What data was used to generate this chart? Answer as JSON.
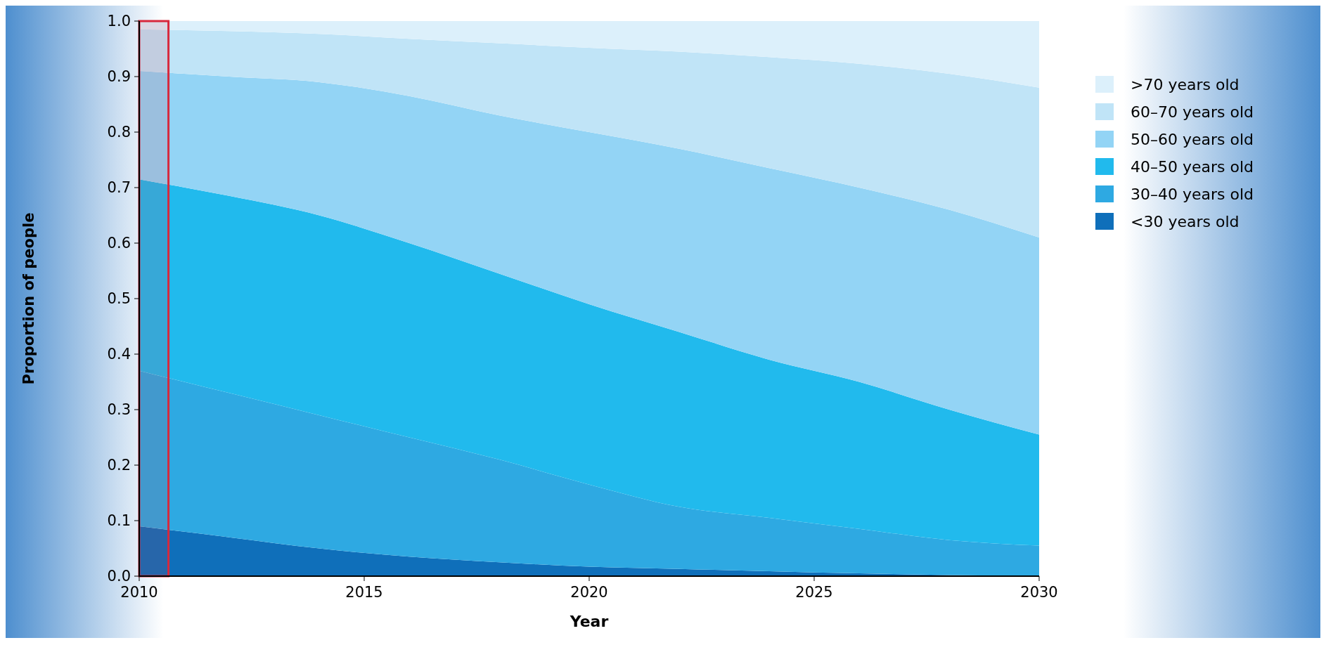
{
  "chart_data": {
    "type": "area",
    "stacked": true,
    "xlabel": "Year",
    "ylabel": "Proportion of people",
    "x": [
      2010,
      2012,
      2014,
      2016,
      2018,
      2020,
      2022,
      2024,
      2026,
      2028,
      2030
    ],
    "xlim": [
      2010,
      2030
    ],
    "xticks": [
      2010,
      2015,
      2020,
      2025,
      2030
    ],
    "ylim": [
      0,
      1
    ],
    "yticks": [
      {
        "value": 0,
        "label": "0.0"
      },
      {
        "value": 0.1,
        "label": "0.1"
      },
      {
        "value": 0.2,
        "label": "0.2"
      },
      {
        "value": 0.3,
        "label": "0.3"
      },
      {
        "value": 0.4,
        "label": "0.4"
      },
      {
        "value": 0.5,
        "label": "0.5"
      },
      {
        "value": 0.6,
        "label": "0.6"
      },
      {
        "value": 0.7,
        "label": "0.7"
      },
      {
        "value": 0.8,
        "label": "0.8"
      },
      {
        "value": 0.9,
        "label": "0.9"
      },
      {
        "value": 1,
        "label": "1.0"
      }
    ],
    "grid": false,
    "legend": "right",
    "bands": [
      {
        "axis": "x",
        "from": 2010,
        "to": 2010.65,
        "color": "#d8283c"
      }
    ],
    "series": [
      {
        "name": "<30 years old",
        "color": "#0f6fba",
        "values": [
          0.09,
          0.07,
          0.05,
          0.035,
          0.025,
          0.017,
          0.013,
          0.009,
          0.005,
          0.002,
          0
        ]
      },
      {
        "name": "30–40 years old",
        "color": "#2ea9e2",
        "values": [
          0.28,
          0.26,
          0.24,
          0.215,
          0.185,
          0.148,
          0.112,
          0.096,
          0.08,
          0.063,
          0.055
        ]
      },
      {
        "name": "40–50 years old",
        "color": "#21baed",
        "values": [
          0.345,
          0.355,
          0.36,
          0.35,
          0.335,
          0.325,
          0.315,
          0.285,
          0.265,
          0.235,
          0.2
        ]
      },
      {
        "name": "50–60 years old",
        "color": "#93d4f5",
        "values": [
          0.195,
          0.215,
          0.24,
          0.265,
          0.285,
          0.31,
          0.33,
          0.345,
          0.35,
          0.36,
          0.355
        ]
      },
      {
        "name": "60–70 years old",
        "color": "#c0e4f7",
        "values": [
          0.075,
          0.082,
          0.087,
          0.103,
          0.13,
          0.152,
          0.175,
          0.2,
          0.223,
          0.245,
          0.27
        ]
      },
      {
        "name": ">70 years old",
        "color": "#dcf0fb",
        "values": [
          0.015,
          0.018,
          0.023,
          0.032,
          0.04,
          0.048,
          0.055,
          0.065,
          0.077,
          0.095,
          0.12
        ]
      }
    ]
  }
}
